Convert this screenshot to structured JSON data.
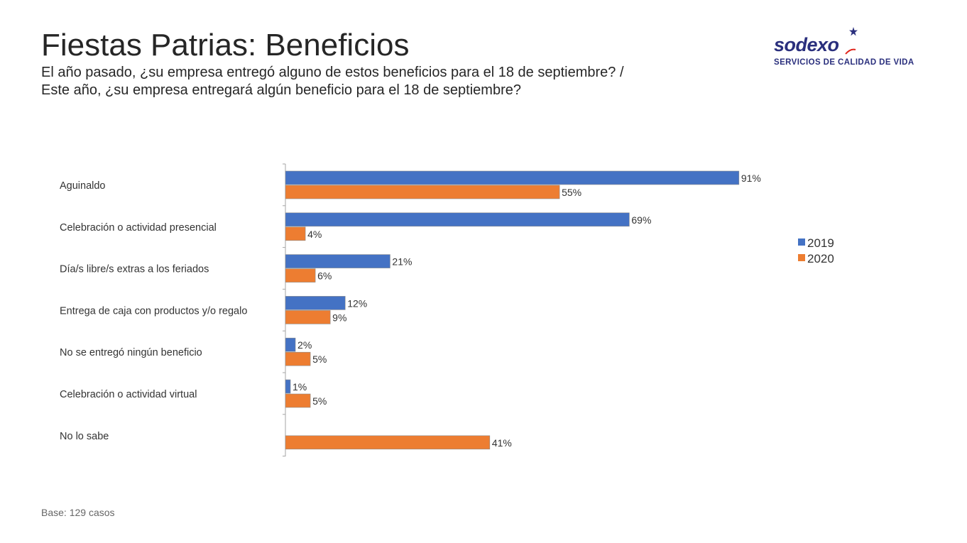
{
  "header": {
    "title": "Fiestas Patrias: Beneficios",
    "subtitle_line1": "El año pasado, ¿su empresa entregó alguno de estos beneficios para el 18 de septiembre? /",
    "subtitle_line2": "Este año, ¿su empresa entregará algún beneficio para el 18 de septiembre?"
  },
  "logo": {
    "wordmark": "sodexo",
    "tagline": "SERVICIOS DE CALIDAD DE VIDA"
  },
  "footer": {
    "base": "Base: 129 casos"
  },
  "colors": {
    "series_2019": "#4472c4",
    "series_2020": "#ed7d31",
    "brand": "#2a2f7d"
  },
  "chart_data": {
    "type": "bar",
    "orientation": "horizontal",
    "categories": [
      "Aguinaldo",
      "Celebración o actividad presencial",
      "Día/s libre/s extras a los feriados",
      "Entrega de caja con productos y/o regalo",
      "No se entregó ningún beneficio",
      "Celebración o actividad virtual",
      "No lo sabe"
    ],
    "series": [
      {
        "name": "2019",
        "values": [
          91,
          69,
          21,
          12,
          2,
          1,
          null
        ],
        "labels": [
          "91%",
          "69%",
          "21%",
          "12%",
          "2%",
          "1%",
          ""
        ]
      },
      {
        "name": "2020",
        "values": [
          55,
          4,
          6,
          9,
          5,
          5,
          41
        ],
        "labels": [
          "55%",
          "4%",
          "6%",
          "9%",
          "5%",
          "5%",
          "41%"
        ]
      }
    ],
    "xlim": [
      0,
      100
    ],
    "value_unit": "%",
    "legend_position": "right",
    "grid": false
  }
}
